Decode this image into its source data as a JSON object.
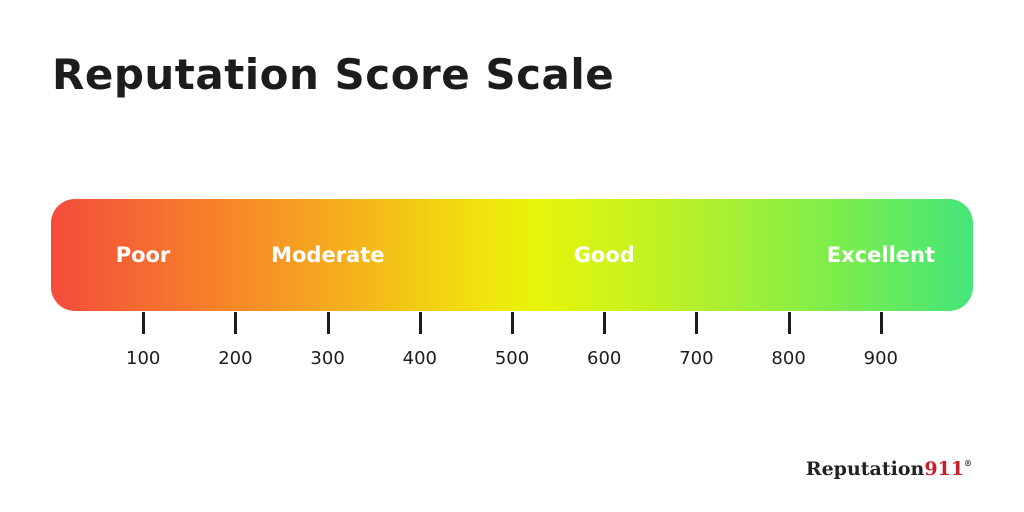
{
  "title": "Reputation Score Scale",
  "chart_data": {
    "type": "scale",
    "title": "Reputation Score Scale",
    "bands": [
      {
        "label": "Poor",
        "center": 100
      },
      {
        "label": "Moderate",
        "center": 300
      },
      {
        "label": "Good",
        "center": 600
      },
      {
        "label": "Excellent",
        "center": 900
      }
    ],
    "ticks": [
      100,
      200,
      300,
      400,
      500,
      600,
      700,
      800,
      900
    ],
    "tick_labels": [
      "100",
      "200",
      "300",
      "400",
      "500",
      "600",
      "700",
      "800",
      "900"
    ],
    "xlim": [
      0,
      1000
    ],
    "gradient_colors": [
      "#f34c3c",
      "#f5b31c",
      "#e6f50a",
      "#44e57a"
    ]
  },
  "brand": {
    "name": "Reputation",
    "number": "911",
    "mark": "®",
    "name_color": "#222222",
    "number_color": "#c8202a"
  }
}
